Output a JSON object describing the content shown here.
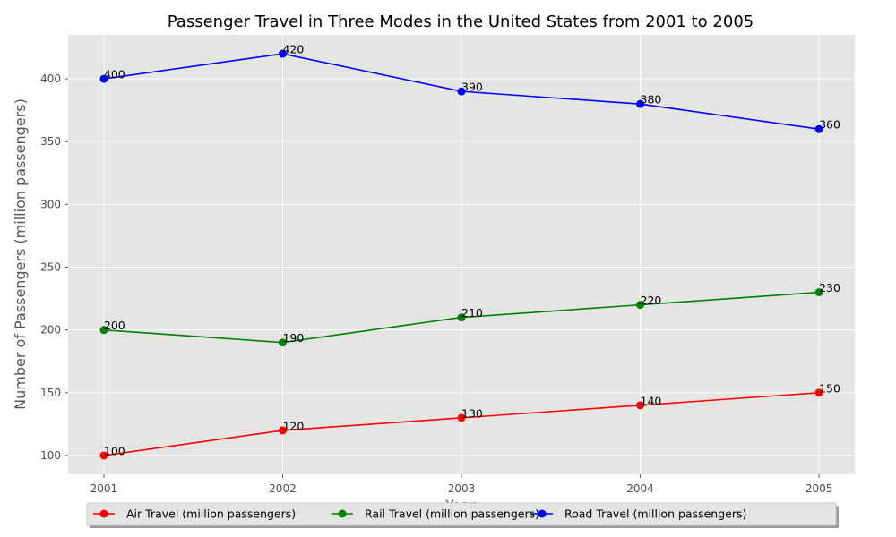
{
  "chart_data": {
    "type": "line",
    "title": "Passenger Travel in Three Modes in the United States from 2001 to 2005",
    "xlabel": "Year",
    "ylabel": "Number of Passengers (million passengers)",
    "x": [
      "2001",
      "2002",
      "2003",
      "2004",
      "2005"
    ],
    "xlim": [
      2000.8,
      2005.2
    ],
    "ylim": [
      85,
      435
    ],
    "yticks": [
      100,
      150,
      200,
      250,
      300,
      350,
      400
    ],
    "grid": true,
    "legend": "bottom-center",
    "series": [
      {
        "name": "Air Travel (million passengers)",
        "color": "#ff0000",
        "values": [
          100,
          120,
          130,
          140,
          150
        ]
      },
      {
        "name": "Rail Travel (million passengers)",
        "color": "#008000",
        "values": [
          200,
          190,
          210,
          220,
          230
        ]
      },
      {
        "name": "Road Travel (million passengers)",
        "color": "#0000ff",
        "values": [
          400,
          420,
          390,
          380,
          360
        ]
      }
    ]
  }
}
